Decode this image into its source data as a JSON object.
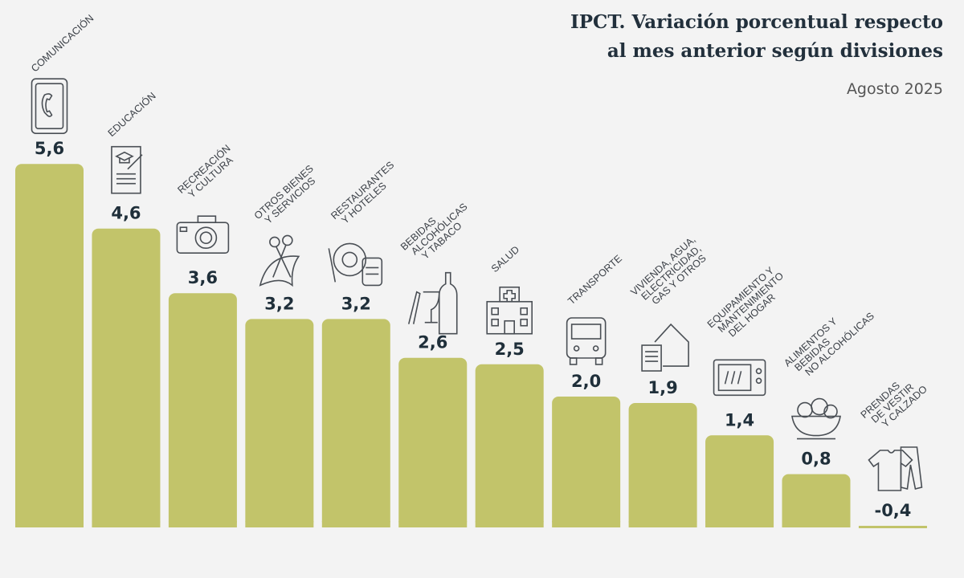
{
  "title_lines": [
    "IPCT. Variación porcentual respecto",
    "al mes anterior según divisiones"
  ],
  "subtitle": "Agosto 2025",
  "chart_data": {
    "type": "bar",
    "title": "IPCT. Variación porcentual respecto al mes anterior según divisiones",
    "subtitle": "Agosto 2025",
    "categories": [
      "Comunicación",
      "Educación",
      "Recreación y cultura",
      "Otros bienes y servicios",
      "Restaurantes y hoteles",
      "Bebidas alcohólicas y tabaco",
      "Salud",
      "Transporte",
      "Vivienda, agua, electricidad, gas y otros",
      "Equipamiento y mantenimiento del hogar",
      "Alimentos y bebidas no alcohólicas",
      "Prendas de vestir y calzado"
    ],
    "category_label_lines": [
      [
        "COMUNICACIÓN"
      ],
      [
        "EDUCACIÓN"
      ],
      [
        "RECREACIÓN",
        "Y CULTURA"
      ],
      [
        "OTROS BIENES",
        "Y SERVICIOS"
      ],
      [
        "RESTAURANTES",
        "Y HOTELES"
      ],
      [
        "BEBIDAS",
        "ALCOHÓLICAS",
        "Y TABACO"
      ],
      [
        "SALUD"
      ],
      [
        "TRANSPORTE"
      ],
      [
        "VIVIENDA, AGUA,",
        "ELECTRICIDAD,",
        "GAS Y OTROS"
      ],
      [
        "EQUIPAMIENTO Y",
        "MANTENIMIENTO",
        "DEL HOGAR"
      ],
      [
        "ALIMENTOS Y",
        "BEBIDAS",
        "NO ALCOHÓLICAS"
      ],
      [
        "PRENDAS",
        "DE VESTIR",
        "Y CALZADO"
      ]
    ],
    "values": [
      5.6,
      4.6,
      3.6,
      3.2,
      3.2,
      2.6,
      2.5,
      2.0,
      1.9,
      1.4,
      0.8,
      -0.4
    ],
    "value_labels": [
      "5,6",
      "4,6",
      "3,6",
      "3,2",
      "3,2",
      "2,6",
      "2,5",
      "2,0",
      "1,9",
      "1,4",
      "0,8",
      "-0,4"
    ],
    "icons": [
      "smartphone-icon",
      "diploma-icon",
      "camera-icon",
      "scissors-ribbon-icon",
      "plate-suitcase-icon",
      "wine-bottle-icon",
      "hospital-icon",
      "bus-icon",
      "house-documents-icon",
      "microwave-icon",
      "food-bowl-icon",
      "clothes-icon"
    ],
    "bar_color": "#c2c46a",
    "grid": false,
    "legend": "none",
    "xlabel": "",
    "ylabel": ""
  }
}
